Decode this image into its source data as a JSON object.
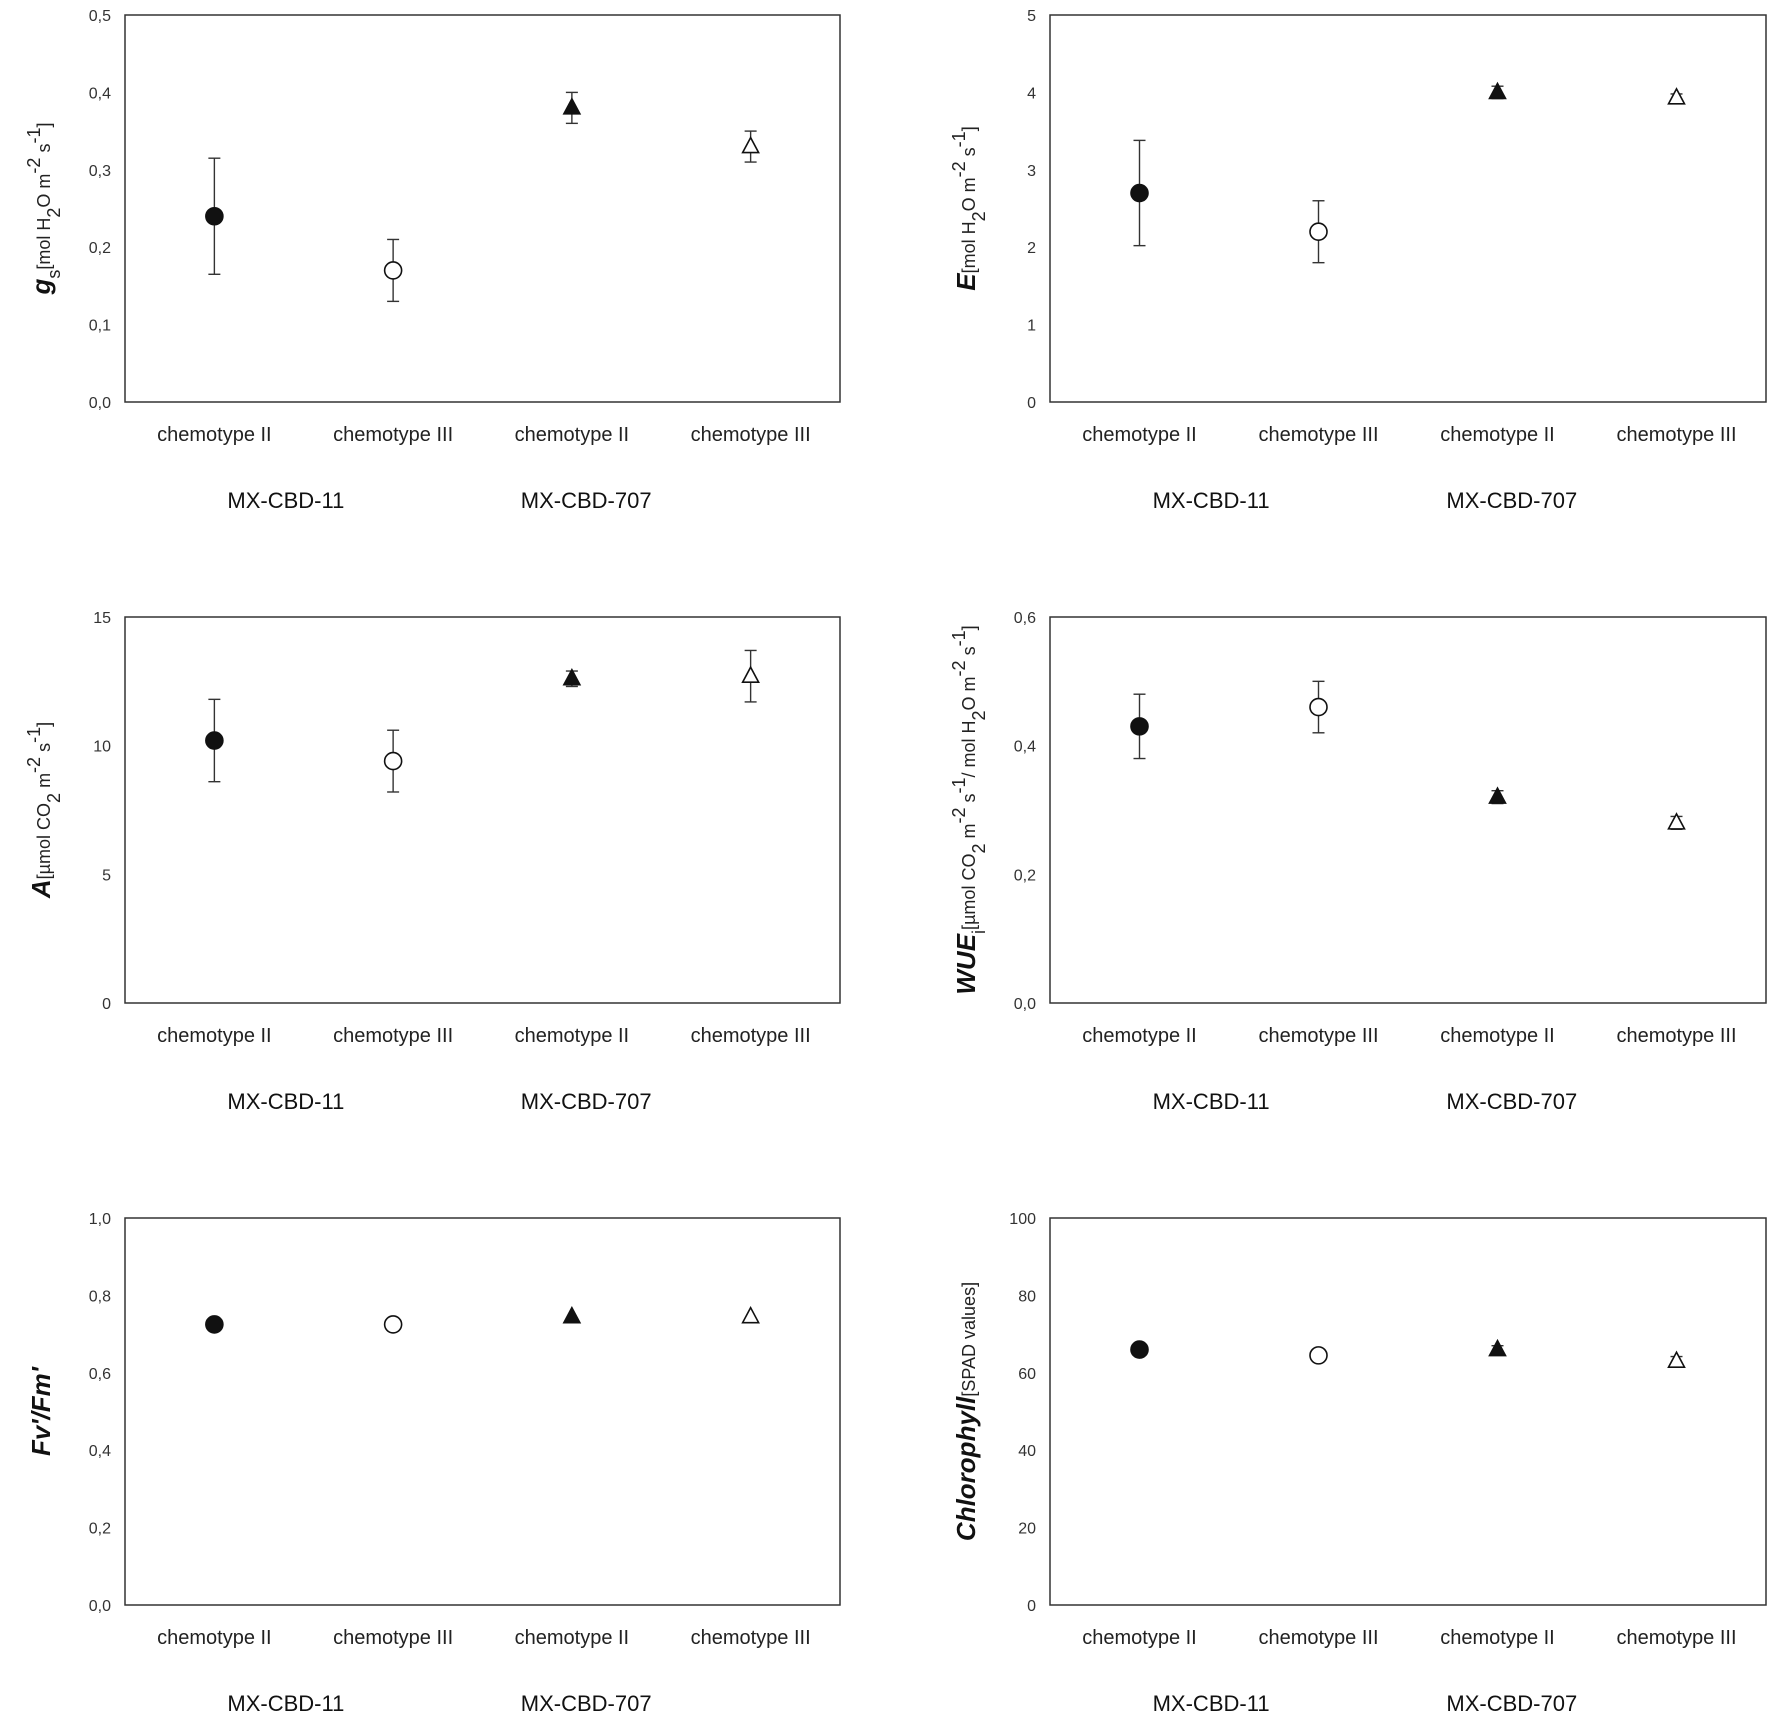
{
  "group_labels": [
    "MX-CBD-11",
    "MX-CBD-707"
  ],
  "chart_data": [
    {
      "type": "scatter",
      "ylabel": {
        "symbol": "g",
        "sub": "s",
        "unit_parts": [
          "[mol H",
          "2",
          "O m",
          "-2",
          " s",
          "-1",
          "]"
        ]
      },
      "yticks": [
        "0,0",
        "0,1",
        "0,2",
        "0,3",
        "0,4",
        "0,5"
      ],
      "ylim": [
        0,
        0.5
      ],
      "categories": [
        "chemotype II",
        "chemotype III",
        "chemotype II",
        "chemotype III"
      ],
      "values": [
        0.24,
        0.17,
        0.38,
        0.33
      ],
      "errors": [
        0.075,
        0.04,
        0.02,
        0.02
      ],
      "markers": [
        "circle-filled",
        "circle-open",
        "triangle-filled",
        "triangle-open"
      ]
    },
    {
      "type": "scatter",
      "ylabel": {
        "symbol": "E",
        "sub": "",
        "unit_parts": [
          "[mol H",
          "2",
          "O m",
          "-2",
          " s",
          "-1",
          "]"
        ]
      },
      "yticks": [
        "0",
        "1",
        "2",
        "3",
        "4",
        "5"
      ],
      "ylim": [
        0,
        5
      ],
      "categories": [
        "chemotype II",
        "chemotype III",
        "chemotype II",
        "chemotype III"
      ],
      "values": [
        2.7,
        2.2,
        4.0,
        3.93
      ],
      "errors": [
        0.68,
        0.4,
        0.08,
        0.05
      ],
      "markers": [
        "circle-filled",
        "circle-open",
        "triangle-filled",
        "triangle-open"
      ]
    },
    {
      "type": "scatter",
      "ylabel": {
        "symbol": "A",
        "sub": "",
        "unit_parts": [
          "[µmol CO",
          "2",
          " m",
          "-2",
          " s",
          "-1",
          "]"
        ]
      },
      "yticks": [
        "0",
        "5",
        "10",
        "15"
      ],
      "ylim": [
        0,
        15
      ],
      "categories": [
        "chemotype II",
        "chemotype III",
        "chemotype II",
        "chemotype III"
      ],
      "values": [
        10.2,
        9.4,
        12.6,
        12.7
      ],
      "errors": [
        1.6,
        1.2,
        0.3,
        1.0
      ],
      "markers": [
        "circle-filled",
        "circle-open",
        "triangle-filled",
        "triangle-open"
      ]
    },
    {
      "type": "scatter",
      "ylabel": {
        "symbol": "WUE",
        "sub": "i",
        "unit_parts": [
          "[µmol CO",
          "2",
          " m",
          "-2",
          " s",
          "-1",
          "/ mol H",
          "2",
          "O m",
          "-2",
          " s",
          "-1",
          "]"
        ]
      },
      "yticks": [
        "0,0",
        "0,2",
        "0,4",
        "0,6"
      ],
      "ylim": [
        0,
        0.6
      ],
      "categories": [
        "chemotype II",
        "chemotype III",
        "chemotype II",
        "chemotype III"
      ],
      "values": [
        0.43,
        0.46,
        0.32,
        0.28
      ],
      "errors": [
        0.05,
        0.04,
        0.01,
        0.01
      ],
      "markers": [
        "circle-filled",
        "circle-open",
        "triangle-filled",
        "triangle-open"
      ]
    },
    {
      "type": "scatter",
      "ylabel": {
        "symbol": "Fv'/Fm'",
        "sub": "",
        "unit_parts": []
      },
      "yticks": [
        "0,0",
        "0,2",
        "0,4",
        "0,6",
        "0,8",
        "1,0"
      ],
      "ylim": [
        0,
        1
      ],
      "categories": [
        "chemotype II",
        "chemotype III",
        "chemotype II",
        "chemotype III"
      ],
      "values": [
        0.725,
        0.725,
        0.745,
        0.745
      ],
      "errors": [
        0.005,
        0.005,
        0.005,
        0.005
      ],
      "markers": [
        "circle-filled",
        "circle-open",
        "triangle-filled",
        "triangle-open"
      ]
    },
    {
      "type": "scatter",
      "ylabel": {
        "symbol": "Chlorophyll",
        "sub": "",
        "unit_parts": [
          "[SPAD values]"
        ]
      },
      "yticks": [
        "0",
        "20",
        "40",
        "60",
        "80",
        "100"
      ],
      "ylim": [
        0,
        100
      ],
      "categories": [
        "chemotype II",
        "chemotype III",
        "chemotype II",
        "chemotype III"
      ],
      "values": [
        66,
        64.5,
        66,
        63
      ],
      "errors": [
        1.0,
        0.8,
        1.0,
        1.2
      ],
      "markers": [
        "circle-filled",
        "circle-open",
        "triangle-filled",
        "triangle-open"
      ]
    }
  ]
}
